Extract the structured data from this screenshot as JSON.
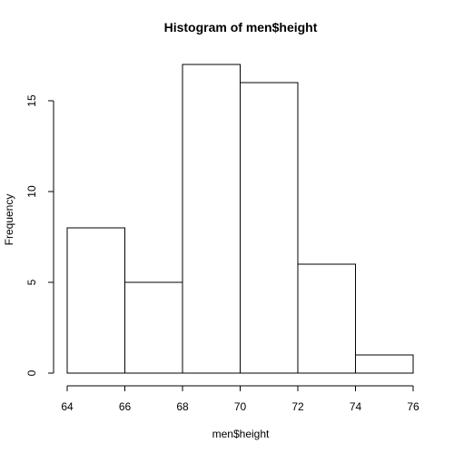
{
  "chart_data": {
    "type": "bar",
    "subtype": "histogram",
    "title": "Histogram of men$height",
    "xlabel": "men$height",
    "ylabel": "Frequency",
    "bins": [
      {
        "start": 64,
        "end": 66,
        "count": 8
      },
      {
        "start": 66,
        "end": 68,
        "count": 5
      },
      {
        "start": 68,
        "end": 70,
        "count": 17
      },
      {
        "start": 70,
        "end": 72,
        "count": 16
      },
      {
        "start": 72,
        "end": 74,
        "count": 6
      },
      {
        "start": 74,
        "end": 76,
        "count": 1
      }
    ],
    "xlim": [
      64,
      76
    ],
    "ylim": [
      0,
      17
    ],
    "xticks": [
      64,
      66,
      68,
      70,
      72,
      74,
      76
    ],
    "yticks": [
      0,
      5,
      10,
      15
    ],
    "grid": false,
    "legend": "none",
    "colors": {
      "bar_fill": "#ffffff",
      "bar_stroke": "#000000"
    }
  }
}
